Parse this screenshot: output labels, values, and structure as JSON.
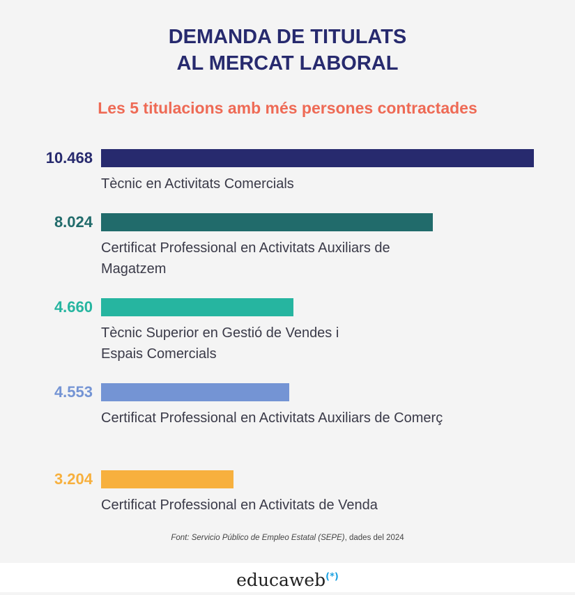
{
  "chart_data": {
    "type": "bar",
    "orientation": "horizontal",
    "title": "DEMANDA DE TITULATS AL MERCAT LABORAL",
    "title_lines": [
      "DEMANDA DE TITULATS",
      "AL MERCAT LABORAL"
    ],
    "subtitle": "Les 5 titulacions amb més persones contractades",
    "categories": [
      "Tècnic en Activitats Comercials",
      "Certificat Professional en Activitats Auxiliars de Magatzem",
      "Tècnic Superior en Gestió de Vendes i Espais Comercials",
      "Certificat Professional en Activitats Auxiliars de Comerç",
      "Certificat Professional en Activitats de Venda"
    ],
    "values": [
      10468,
      8024,
      4660,
      4553,
      3204
    ],
    "value_labels": [
      "10.468",
      "8.024",
      "4.660",
      "4.553",
      "3.204"
    ],
    "colors": [
      "#272a6e",
      "#216b6b",
      "#26b5a0",
      "#7494d4",
      "#f7b03e"
    ],
    "xlim": [
      0,
      10468
    ],
    "grid": false
  },
  "source": {
    "italic": "Font: Servicio Público de Empleo Estatal (SEPE)",
    "rest": ", dades del 2024"
  },
  "logo": {
    "text": "educaweb",
    "mark": "(*)"
  }
}
